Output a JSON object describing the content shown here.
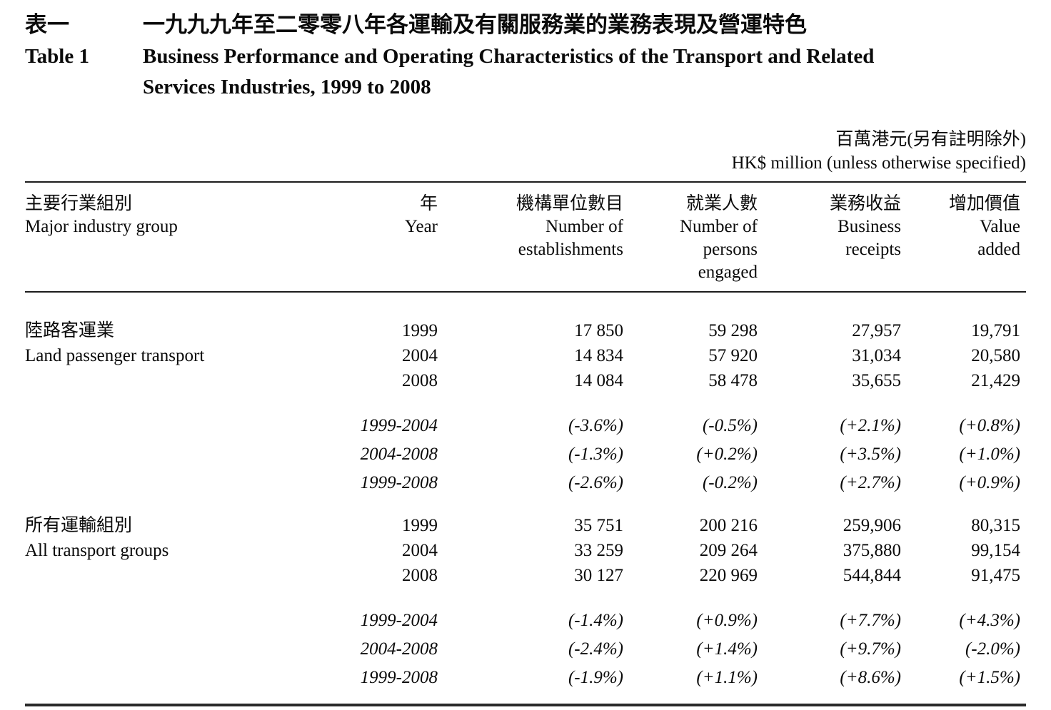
{
  "page": {
    "title_zh_label": "表一",
    "title_zh": "一九九九年至二零零八年各運輸及有關服務業的業務表現及營運特色",
    "title_en_label": "Table 1",
    "title_en_line1": "Business Performance and Operating Characteristics of the Transport and Related",
    "title_en_line2": "Services Industries, 1999 to 2008",
    "units_zh": "百萬港元(另有註明除外)",
    "units_en": "HK$ million (unless otherwise specified)"
  },
  "table": {
    "headers": {
      "industry": {
        "zh": "主要行業組別",
        "en": "Major industry group"
      },
      "year": {
        "zh": "年",
        "en": "Year"
      },
      "establishments": {
        "zh": "機構單位數目",
        "en_lines": [
          "Number of",
          "establishments"
        ]
      },
      "persons": {
        "zh": "就業人數",
        "en_lines": [
          "Number of",
          "persons",
          "engaged"
        ]
      },
      "receipts": {
        "zh": "業務收益",
        "en_lines": [
          "Business",
          "receipts"
        ]
      },
      "value_added": {
        "zh": "增加價值",
        "en_lines": [
          "Value",
          "added"
        ]
      }
    },
    "groups": [
      {
        "label_zh": "陸路客運業",
        "label_en": "Land passenger transport",
        "year_rows": [
          {
            "year": "1999",
            "values": [
              "17 850",
              "59 298",
              "27,957",
              "19,791"
            ]
          },
          {
            "year": "2004",
            "values": [
              "14 834",
              "57 920",
              "31,034",
              "20,580"
            ]
          },
          {
            "year": "2008",
            "values": [
              "14 084",
              "58 478",
              "35,655",
              "21,429"
            ]
          }
        ],
        "change_rows": [
          {
            "period": "1999-2004",
            "values": [
              "(-3.6%)",
              "(-0.5%)",
              "(+2.1%)",
              "(+0.8%)"
            ]
          },
          {
            "period": "2004-2008",
            "values": [
              "(-1.3%)",
              "(+0.2%)",
              "(+3.5%)",
              "(+1.0%)"
            ]
          },
          {
            "period": "1999-2008",
            "values": [
              "(-2.6%)",
              "(-0.2%)",
              "(+2.7%)",
              "(+0.9%)"
            ]
          }
        ]
      },
      {
        "label_zh": "所有運輸組別",
        "label_en": "All transport groups",
        "year_rows": [
          {
            "year": "1999",
            "values": [
              "35 751",
              "200 216",
              "259,906",
              "80,315"
            ]
          },
          {
            "year": "2004",
            "values": [
              "33 259",
              "209 264",
              "375,880",
              "99,154"
            ]
          },
          {
            "year": "2008",
            "values": [
              "30 127",
              "220 969",
              "544,844",
              "91,475"
            ]
          }
        ],
        "change_rows": [
          {
            "period": "1999-2004",
            "values": [
              "(-1.4%)",
              "(+0.9%)",
              "(+7.7%)",
              "(+4.3%)"
            ]
          },
          {
            "period": "2004-2008",
            "values": [
              "(-2.4%)",
              "(+1.4%)",
              "(+9.7%)",
              "(-2.0%)"
            ]
          },
          {
            "period": "1999-2008",
            "values": [
              "(-1.9%)",
              "(+1.1%)",
              "(+8.6%)",
              "(+1.5%)"
            ]
          }
        ]
      }
    ]
  }
}
